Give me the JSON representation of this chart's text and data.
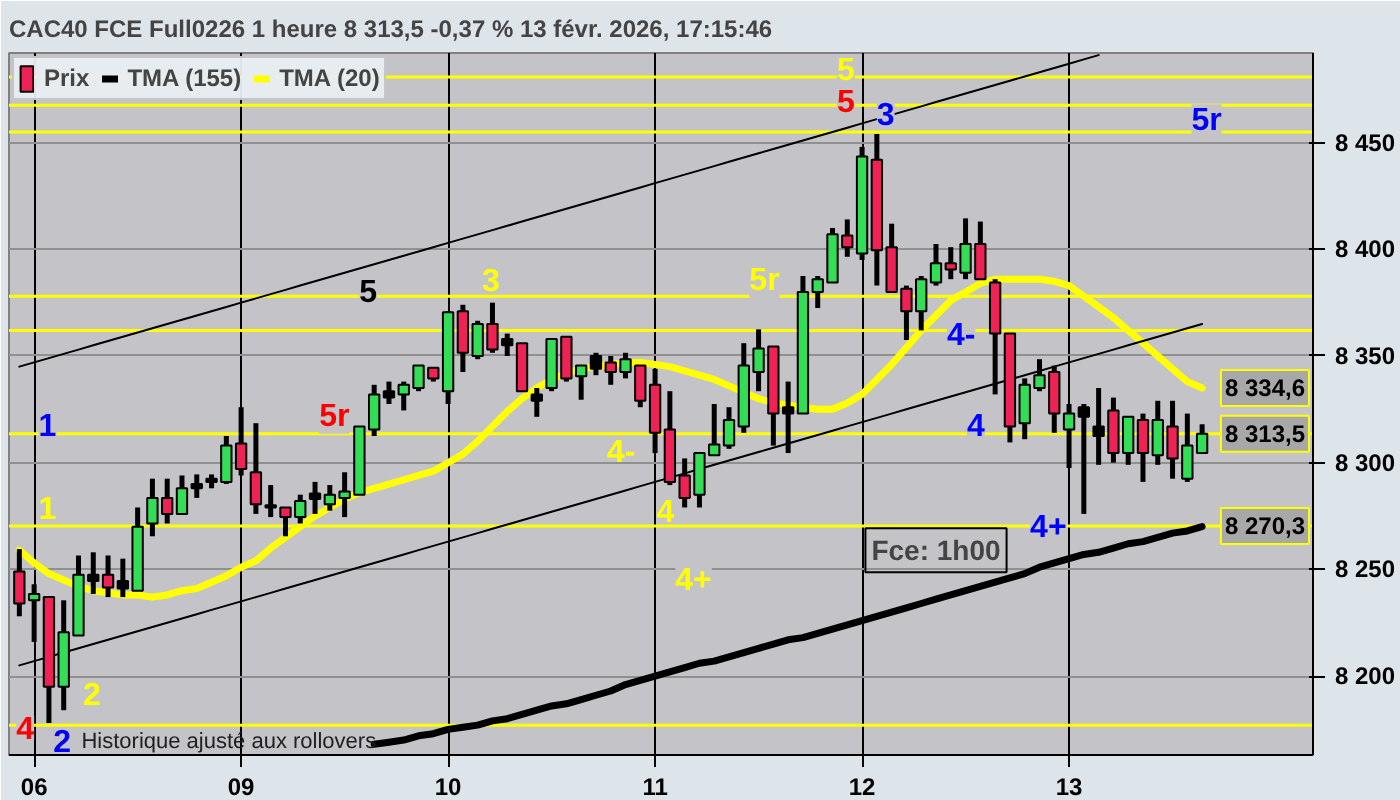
{
  "chart_data": {
    "type": "candlestick",
    "title": "CAC40 FCE Full0226 1 heure 8 313,5 -0,37 % 13 févr. 2026, 17:15:46",
    "categories": [
      null,
      "06",
      null,
      null,
      null,
      null,
      null,
      null,
      null,
      null,
      null,
      null,
      null,
      null,
      null,
      "09",
      null,
      null,
      null,
      null,
      null,
      null,
      null,
      null,
      null,
      null,
      null,
      null,
      null,
      "10",
      null,
      null,
      null,
      null,
      null,
      null,
      null,
      null,
      null,
      null,
      null,
      null,
      null,
      "11",
      null,
      null,
      null,
      null,
      null,
      null,
      null,
      null,
      null,
      null,
      null,
      null,
      null,
      "12",
      null,
      null,
      null,
      null,
      null,
      null,
      null,
      null,
      null,
      null,
      null,
      null,
      null,
      "13",
      null,
      null,
      null,
      null,
      null,
      null,
      null,
      null,
      null
    ],
    "ylim": [
      8163,
      8492
    ],
    "yticks": [
      {
        "value": 8200,
        "label": "8 200"
      },
      {
        "value": 8250,
        "label": "8 250"
      },
      {
        "value": 8300,
        "label": "8 300"
      },
      {
        "value": 8350,
        "label": "8 350"
      },
      {
        "value": 8400,
        "label": "8 400"
      },
      {
        "value": 8450,
        "label": "8 450"
      }
    ],
    "grid": true,
    "legend": "top left",
    "series": [
      {
        "name": "Prix",
        "ohlc": [
          [
            8249,
            8259.5,
            8228,
            8234
          ],
          [
            8235.5,
            8243,
            8216,
            8238.5
          ],
          [
            8237,
            8237,
            8178,
            8195
          ],
          [
            8195,
            8235.5,
            8184,
            8220.5
          ],
          [
            8219,
            8256.5,
            8219,
            8247.5
          ],
          [
            8244.5,
            8258,
            8238.5,
            8247.5
          ],
          [
            8247.5,
            8256.5,
            8237,
            8241.5
          ],
          [
            8241,
            8255,
            8237,
            8244.5
          ],
          [
            8240,
            8279,
            8240,
            8270
          ],
          [
            8271.5,
            8292.5,
            8265.5,
            8283.5
          ],
          [
            8283.5,
            8292.5,
            8271.5,
            8276
          ],
          [
            8276,
            8294,
            8276,
            8288
          ],
          [
            8288,
            8294.5,
            8283.5,
            8290
          ],
          [
            8291,
            8294.5,
            8288,
            8292.5
          ],
          [
            8291,
            8312.5,
            8290,
            8308
          ],
          [
            8309,
            8326,
            8294,
            8297
          ],
          [
            8295.5,
            8318.5,
            8276,
            8280.5
          ],
          [
            8280,
            8289.5,
            8274.5,
            8279
          ],
          [
            8279,
            8279,
            8265.5,
            8274.5
          ],
          [
            8274.5,
            8285,
            8271.5,
            8282
          ],
          [
            8283,
            8291,
            8276,
            8285.5
          ],
          [
            8280.5,
            8289.5,
            8277.5,
            8285
          ],
          [
            8283.5,
            8295.5,
            8274.5,
            8286.5
          ],
          [
            8285,
            8317,
            8285,
            8317
          ],
          [
            8315.5,
            8336.5,
            8312.5,
            8332
          ],
          [
            8330.5,
            8338,
            8327.5,
            8333.5
          ],
          [
            8332,
            8338,
            8324.5,
            8336.5
          ],
          [
            8335,
            8345.5,
            8333.5,
            8345.5
          ],
          [
            8344.5,
            8344.5,
            8338,
            8339.5
          ],
          [
            8333.5,
            8371,
            8327.5,
            8370.5
          ],
          [
            8371,
            8374,
            8342.5,
            8351.5
          ],
          [
            8350,
            8366.5,
            8348.5,
            8365
          ],
          [
            8365,
            8375,
            8351.5,
            8353
          ],
          [
            8355,
            8360.5,
            8350,
            8358
          ],
          [
            8356,
            8356,
            8333.5,
            8333.5
          ],
          [
            8332,
            8335,
            8321.5,
            8329
          ],
          [
            8335,
            8358,
            8333.5,
            8358
          ],
          [
            8359,
            8359,
            8338,
            8339.5
          ],
          [
            8340.5,
            8345.5,
            8329.5,
            8345.5
          ],
          [
            8344,
            8351.5,
            8341,
            8350
          ],
          [
            8347,
            8350,
            8336.5,
            8342.5
          ],
          [
            8342.5,
            8351.5,
            8339.5,
            8348.5
          ],
          [
            8345.5,
            8345.5,
            8326,
            8329
          ],
          [
            8336.5,
            8344,
            8304.5,
            8314
          ],
          [
            8315.5,
            8333.5,
            8289.5,
            8291
          ],
          [
            8294,
            8302,
            8279,
            8283.5
          ],
          [
            8285,
            8304.5,
            8279,
            8304.5
          ],
          [
            8303.5,
            8327.5,
            8303.5,
            8308.5
          ],
          [
            8308,
            8326,
            8306.5,
            8320
          ],
          [
            8317,
            8356,
            8314,
            8345.5
          ],
          [
            8342.5,
            8362.5,
            8333.5,
            8353.5
          ],
          [
            8354.5,
            8354.5,
            8308,
            8323
          ],
          [
            8323,
            8338,
            8304.5,
            8326
          ],
          [
            8323,
            8387.5,
            8323,
            8380
          ],
          [
            8380,
            8387.5,
            8372.5,
            8386
          ],
          [
            8384.5,
            8410,
            8384.5,
            8407
          ],
          [
            8406.5,
            8414,
            8396.5,
            8401
          ],
          [
            8398,
            8448,
            8395,
            8443.5
          ],
          [
            8442,
            8454,
            8383,
            8399.5
          ],
          [
            8401,
            8412,
            8380,
            8380
          ],
          [
            8381.5,
            8383,
            8357.5,
            8371
          ],
          [
            8371,
            8387.5,
            8362,
            8386
          ],
          [
            8384.5,
            8402.5,
            8383,
            8393.5
          ],
          [
            8393.5,
            8401,
            8386,
            8390.5
          ],
          [
            8389,
            8414.5,
            8386,
            8402.5
          ],
          [
            8402.5,
            8413,
            8386,
            8386
          ],
          [
            8384.5,
            8386,
            8332,
            8360.5
          ],
          [
            8360.5,
            8360.5,
            8309.5,
            8317
          ],
          [
            8318.5,
            8339.5,
            8311,
            8336.5
          ],
          [
            8335,
            8348.5,
            8333.5,
            8341
          ],
          [
            8342.5,
            8345.5,
            8314,
            8323
          ],
          [
            8315.5,
            8327.5,
            8297.5,
            8323
          ],
          [
            8321.5,
            8327.5,
            8276,
            8326
          ],
          [
            8312.5,
            8335,
            8299,
            8317
          ],
          [
            8324.5,
            8330.5,
            8300,
            8304.5
          ],
          [
            8304.5,
            8321.5,
            8299,
            8321.5
          ],
          [
            8320,
            8323,
            8291,
            8304.5
          ],
          [
            8303.5,
            8329,
            8299,
            8320
          ],
          [
            8317,
            8329,
            8292.5,
            8302
          ],
          [
            8292.5,
            8323,
            8291,
            8308
          ],
          [
            8304.5,
            8318,
            8304.5,
            8313.5
          ]
        ],
        "colors": [
          "#ee2255",
          "#33dd55",
          "#ee2255",
          "#33dd55",
          "#33dd55",
          "#000000",
          "#ee2255",
          "#000000",
          "#33dd55",
          "#33dd55",
          "#ee2255",
          "#33dd55",
          "#000000",
          "#000000",
          "#33dd55",
          "#ee2255",
          "#ee2255",
          "#000000",
          "#ee2255",
          "#33dd55",
          "#000000",
          "#33dd55",
          "#33dd55",
          "#33dd55",
          "#33dd55",
          "#000000",
          "#33dd55",
          "#33dd55",
          "#ee2255",
          "#33dd55",
          "#ee2255",
          "#33dd55",
          "#ee2255",
          "#000000",
          "#ee2255",
          "#000000",
          "#33dd55",
          "#ee2255",
          "#33dd55",
          "#000000",
          "#ee2255",
          "#33dd55",
          "#ee2255",
          "#ee2255",
          "#ee2255",
          "#ee2255",
          "#33dd55",
          "#33dd55",
          "#33dd55",
          "#33dd55",
          "#33dd55",
          "#ee2255",
          "#000000",
          "#33dd55",
          "#33dd55",
          "#33dd55",
          "#ee2255",
          "#33dd55",
          "#ee2255",
          "#ee2255",
          "#ee2255",
          "#33dd55",
          "#33dd55",
          "#ee2255",
          "#33dd55",
          "#ee2255",
          "#ee2255",
          "#ee2255",
          "#33dd55",
          "#33dd55",
          "#ee2255",
          "#33dd55",
          "#000000",
          "#000000",
          "#ee2255",
          "#33dd55",
          "#ee2255",
          "#33dd55",
          "#ee2255",
          "#33dd55",
          "#33dd55"
        ]
      },
      {
        "name": "TMA (155)",
        "type": "line",
        "color": "#000000",
        "values": [
          null,
          null,
          null,
          null,
          null,
          null,
          null,
          null,
          null,
          null,
          null,
          null,
          null,
          null,
          null,
          null,
          null,
          null,
          null,
          null,
          null,
          null,
          null,
          null,
          8168,
          8169,
          8170,
          8172,
          8173,
          8175,
          8176,
          8177,
          8179,
          8180,
          8182,
          8184,
          8186,
          8187,
          8189,
          8191,
          8193,
          8196,
          8198,
          8200,
          8202,
          8204,
          8206,
          8207,
          8209,
          8211,
          8213,
          8215,
          8217,
          8218,
          8220,
          8222,
          8224,
          8226,
          8228,
          8230,
          8232,
          8234,
          8236,
          8238,
          8240,
          8242,
          8244,
          8246,
          8248,
          8251,
          8253,
          8255,
          8257,
          8258,
          8260,
          8262,
          8263,
          8265,
          8267,
          8268,
          8270
        ]
      },
      {
        "name": "TMA (20)",
        "type": "line",
        "color": "#ffff00",
        "values": [
          8259,
          8253,
          8248,
          8245,
          8242,
          8240,
          8239,
          8238,
          8238,
          8237,
          8238,
          8240,
          8241,
          8244,
          8247,
          8251,
          8254,
          8260,
          8265,
          8270,
          8275,
          8279,
          8283,
          8286,
          8288,
          8290,
          8292,
          8294,
          8296,
          8300,
          8304,
          8310,
          8317,
          8324,
          8330,
          8335,
          8339,
          8342,
          8344,
          8345,
          8346,
          8347,
          8347,
          8346,
          8345,
          8343,
          8341,
          8339,
          8336,
          8333,
          8330,
          8328,
          8327,
          8326,
          8325,
          8325,
          8328,
          8332,
          8339,
          8346,
          8354,
          8362,
          8369,
          8376,
          8380,
          8384,
          8386,
          8386,
          8386,
          8386,
          8385,
          8383,
          8378,
          8373,
          8368,
          8362,
          8356,
          8350,
          8344,
          8338,
          8335
        ]
      },
      {
        "type": "line",
        "color": "#000000",
        "values": [
          8345,
          8347,
          8349,
          8351,
          8353,
          8355,
          8357,
          8359,
          8361,
          8363,
          8365,
          8367,
          8369,
          8371,
          8373,
          8375,
          8377,
          8379,
          8381,
          8383,
          8385,
          8387,
          8389,
          8391,
          8393,
          8395,
          8397,
          8399,
          8401,
          8403,
          8405,
          8407,
          8409,
          8411,
          8413,
          8415,
          8417,
          8419,
          8421,
          8423,
          8425,
          8427,
          8429,
          8431,
          8433,
          8435,
          8437,
          8439,
          8441,
          8443,
          8445,
          8447,
          8449,
          8451,
          8453,
          8455,
          8457,
          8459,
          8461,
          8463,
          8465,
          8467,
          8469,
          8471,
          8473,
          8475,
          8477,
          8479,
          8481,
          8483,
          8485,
          8487,
          8489,
          8491,
          null,
          null,
          null,
          null,
          null,
          null,
          null
        ]
      },
      {
        "type": "line",
        "color": "#000000",
        "values": [
          8205,
          8207,
          8209,
          8211,
          8213,
          8215,
          8217,
          8219,
          8221,
          8223,
          8225,
          8227,
          8229,
          8231,
          8233,
          8235,
          8237,
          8239,
          8241,
          8243,
          8245,
          8247,
          8249,
          8251,
          8253,
          8255,
          8257,
          8259,
          8261,
          8263,
          8265,
          8267,
          8269,
          8271,
          8273,
          8275,
          8277,
          8279,
          8281,
          8283,
          8285,
          8287,
          8289,
          8291,
          8293,
          8295,
          8297,
          8299,
          8301,
          8303,
          8305,
          8307,
          8309,
          8311,
          8313,
          8315,
          8317,
          8319,
          8321,
          8323,
          8325,
          8327,
          8329,
          8331,
          8333,
          8335,
          8337,
          8339,
          8341,
          8343,
          8345,
          8347,
          8349,
          8351,
          8353,
          8355,
          8357,
          8359,
          8361,
          8363,
          8365
        ]
      }
    ],
    "ref_lines": [
      {
        "axis": "y",
        "value": 8480.7,
        "color": "#ffff00"
      },
      {
        "axis": "y",
        "value": 8467.5,
        "color": "#ffff00"
      },
      {
        "axis": "y",
        "value": 8455,
        "color": "#ffff00"
      },
      {
        "axis": "y",
        "value": 8378,
        "color": "#ffff00"
      },
      {
        "axis": "y",
        "value": 8362,
        "color": "#ffff00"
      },
      {
        "axis": "y",
        "value": 8313.5,
        "color": "#ffff00",
        "label": "8 313,5"
      },
      {
        "axis": "y",
        "value": 8270.3,
        "color": "#ffff00",
        "label": "8 270,3"
      },
      {
        "axis": "y",
        "value": 8177,
        "color": "#ffff00"
      }
    ],
    "annotations": [
      "1",
      "1",
      "4",
      "2",
      "2",
      "5",
      "5r",
      "3",
      "4-",
      "4",
      "4+",
      "5r",
      "5",
      "5",
      "3",
      "4-",
      "4",
      "4+",
      "5r",
      "Fce: 1h00",
      "Historique ajusté aux rollovers",
      "8 334,6"
    ]
  }
}
